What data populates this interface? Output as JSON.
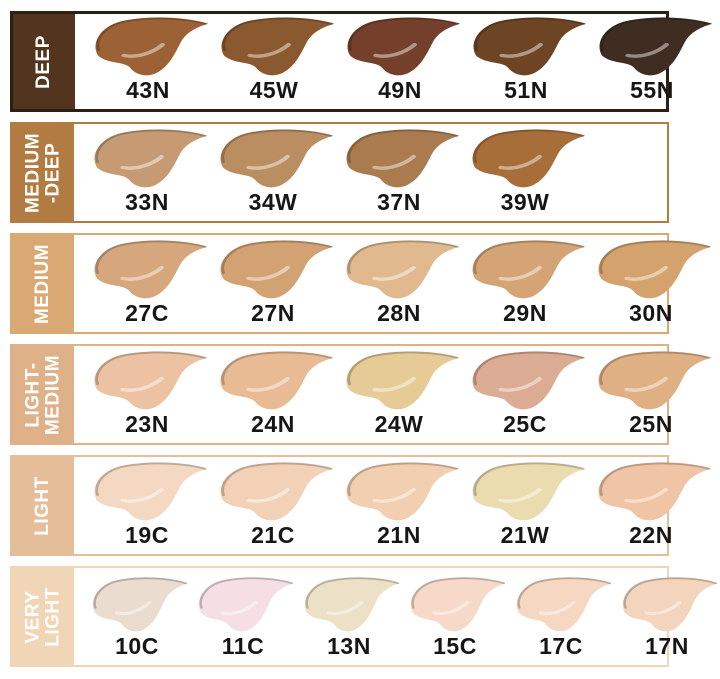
{
  "page": {
    "background": "#ffffff"
  },
  "chart_data": {
    "type": "table",
    "description": "Foundation shade swatch chart grouped by depth category",
    "categories": [
      "DEEP",
      "MEDIUM-DEEP",
      "MEDIUM",
      "LIGHT-MEDIUM",
      "LIGHT",
      "VERY LIGHT"
    ],
    "legend_position": "left",
    "shade_codes_by_category": {
      "DEEP": [
        "43N",
        "45W",
        "49N",
        "51N",
        "55N"
      ],
      "MEDIUM-DEEP": [
        "33N",
        "34W",
        "37N",
        "39W"
      ],
      "MEDIUM": [
        "27C",
        "27N",
        "28N",
        "29N",
        "30N"
      ],
      "LIGHT-MEDIUM": [
        "23N",
        "24N",
        "24W",
        "25C",
        "25N"
      ],
      "LIGHT": [
        "19C",
        "21C",
        "21N",
        "21W",
        "22N"
      ],
      "VERY LIGHT": [
        "10C",
        "11C",
        "13N",
        "15C",
        "17C",
        "17N"
      ]
    }
  },
  "rows": [
    {
      "label_lines": [
        "DEEP"
      ],
      "label_bg": "#53341d",
      "border_color": "#2b2014",
      "text_color": "#ffffff",
      "shades": [
        {
          "code": "43N",
          "color": "#9c6134"
        },
        {
          "code": "45W",
          "color": "#8a592f"
        },
        {
          "code": "49N",
          "color": "#75402b"
        },
        {
          "code": "51N",
          "color": "#6d4524"
        },
        {
          "code": "55N",
          "color": "#3e2d20"
        }
      ]
    },
    {
      "label_lines": [
        "MEDIUM",
        "-DEEP"
      ],
      "label_bg": "#b17b42",
      "border_color": "#b17b42",
      "text_color": "#ffffff",
      "shades": [
        {
          "code": "33N",
          "color": "#c69b73"
        },
        {
          "code": "34W",
          "color": "#ba8e60"
        },
        {
          "code": "37N",
          "color": "#a97b4e"
        },
        {
          "code": "39W",
          "color": "#a76e39"
        }
      ]
    },
    {
      "label_lines": [
        "MEDIUM"
      ],
      "label_bg": "#d9a873",
      "border_color": "#d9a873",
      "text_color": "#ffffff",
      "shades": [
        {
          "code": "27C",
          "color": "#d6a77d"
        },
        {
          "code": "27N",
          "color": "#d2a272"
        },
        {
          "code": "28N",
          "color": "#e0ba8e"
        },
        {
          "code": "29N",
          "color": "#d4a477"
        },
        {
          "code": "30N",
          "color": "#d3a26d"
        }
      ]
    },
    {
      "label_lines": [
        "LIGHT-",
        "MEDIUM"
      ],
      "label_bg": "#dfb189",
      "border_color": "#dfb189",
      "text_color": "#ffffff",
      "shades": [
        {
          "code": "23N",
          "color": "#ecc2a3"
        },
        {
          "code": "24N",
          "color": "#e9bb95"
        },
        {
          "code": "24W",
          "color": "#e6cb97"
        },
        {
          "code": "25C",
          "color": "#dcab93"
        },
        {
          "code": "25N",
          "color": "#e0b085"
        }
      ]
    },
    {
      "label_lines": [
        "LIGHT"
      ],
      "label_bg": "#e6bd99",
      "border_color": "#e6bd99",
      "text_color": "#ffffff",
      "shades": [
        {
          "code": "19C",
          "color": "#f4d8c2"
        },
        {
          "code": "21C",
          "color": "#f2d1b7"
        },
        {
          "code": "21N",
          "color": "#f1cfb0"
        },
        {
          "code": "21W",
          "color": "#ebdcb0"
        },
        {
          "code": "22N",
          "color": "#f0c5a6"
        }
      ]
    },
    {
      "label_lines": [
        "VERY",
        "LIGHT"
      ],
      "label_bg": "#f0d5b6",
      "border_color": "#f0d5b6",
      "text_color": "#ffffff",
      "shades": [
        {
          "code": "10C",
          "color": "#eadcce"
        },
        {
          "code": "11C",
          "color": "#f5dee4"
        },
        {
          "code": "13N",
          "color": "#ece0c6"
        },
        {
          "code": "15C",
          "color": "#f7d9c9"
        },
        {
          "code": "17C",
          "color": "#f5d7c2"
        },
        {
          "code": "17N",
          "color": "#f3d4bd"
        }
      ]
    }
  ]
}
